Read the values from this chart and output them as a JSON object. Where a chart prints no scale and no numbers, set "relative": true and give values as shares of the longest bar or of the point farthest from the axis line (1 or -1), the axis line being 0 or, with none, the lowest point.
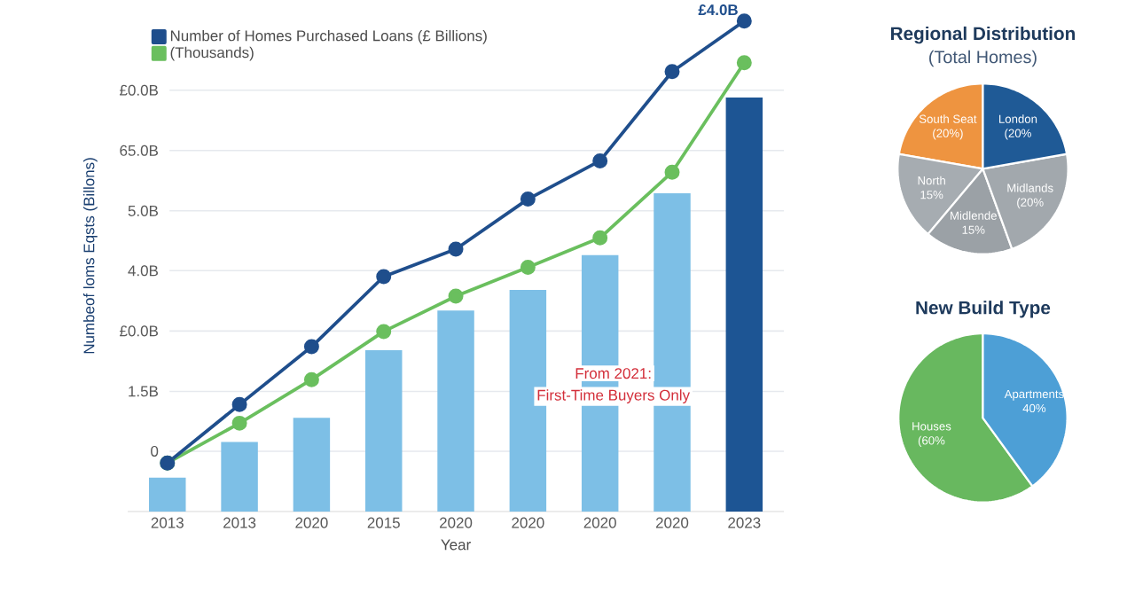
{
  "chart_data": [
    {
      "type": "bar",
      "xlabel": "Year",
      "ylabel": "Numbeof loms Eqsts (Billons)",
      "relative": true,
      "categories": [
        "2013",
        "2013",
        "2020",
        "2015",
        "2020",
        "2020",
        "2020",
        "2020",
        "2023"
      ],
      "series": [
        {
          "type": "bar",
          "colors": [
            "#7dbfe6",
            "#7dbfe6",
            "#7dbfe6",
            "#7dbfe6",
            "#7dbfe6",
            "#7dbfe6",
            "#7dbfe6",
            "#7dbfe6",
            "#1d5594"
          ],
          "values": [
            0.069,
            0.142,
            0.191,
            0.329,
            0.41,
            0.452,
            0.523,
            0.649,
            0.844
          ]
        },
        {
          "type": "line",
          "name": "Number of Homes Purchased Loans (£ Billions)",
          "color": "#1f4e8c",
          "values": [
            0.099,
            0.218,
            0.336,
            0.479,
            0.535,
            0.637,
            0.715,
            0.897,
            1
          ]
        },
        {
          "type": "line",
          "name": "(Thousands)",
          "color": "#6abf5e",
          "values": [
            0.099,
            0.18,
            0.269,
            0.367,
            0.439,
            0.498,
            0.558,
            0.692,
            0.915
          ]
        }
      ],
      "ref_lines": [
        {
          "axis": "y",
          "value": 0.123,
          "label": "0",
          "color": "#e6e9ee"
        },
        {
          "axis": "y",
          "value": 0.245,
          "label": "1.5B",
          "color": "#e6e9ee"
        },
        {
          "axis": "y",
          "value": 0.368,
          "label": "£0.0B",
          "color": "#e6e9ee"
        },
        {
          "axis": "y",
          "value": 0.491,
          "label": "4.0B",
          "color": "#e6e9ee"
        },
        {
          "axis": "y",
          "value": 0.613,
          "label": "5.0B",
          "color": "#e6e9ee"
        },
        {
          "axis": "y",
          "value": 0.736,
          "label": "65.0B",
          "color": "#e6e9ee"
        },
        {
          "axis": "y",
          "value": 0.859,
          "label": "£0.0B",
          "color": "#e6e9ee"
        }
      ],
      "legend": "top left",
      "marker": "circle",
      "annotations": [
        {
          "text": "£4.0B",
          "x": "2023",
          "y": 1
        },
        "From 2021:",
        "First-Time Buyers Only"
      ]
    },
    {
      "type": "pie",
      "title": "Regional Distribution",
      "subtitle": "(Total Homes)",
      "categories": [
        "South Seat",
        "North",
        "Midlende",
        "Midlands",
        "London"
      ],
      "values": [
        20,
        15,
        15,
        20,
        20
      ],
      "value_labels": [
        "(20%)",
        "15%",
        "15%",
        "(20%",
        "(20%"
      ],
      "colors": [
        "#ee9440",
        "#a6acb1",
        "#9ba1a6",
        "#a2a8ad",
        "#1f5a96"
      ]
    },
    {
      "type": "pie",
      "title": "New Build Type",
      "categories": [
        "Houses",
        "Apartments"
      ],
      "values": [
        60,
        40
      ],
      "value_labels": [
        "(60%",
        "40%"
      ],
      "colors": [
        "#68b85f",
        "#4d9fd6"
      ]
    }
  ]
}
